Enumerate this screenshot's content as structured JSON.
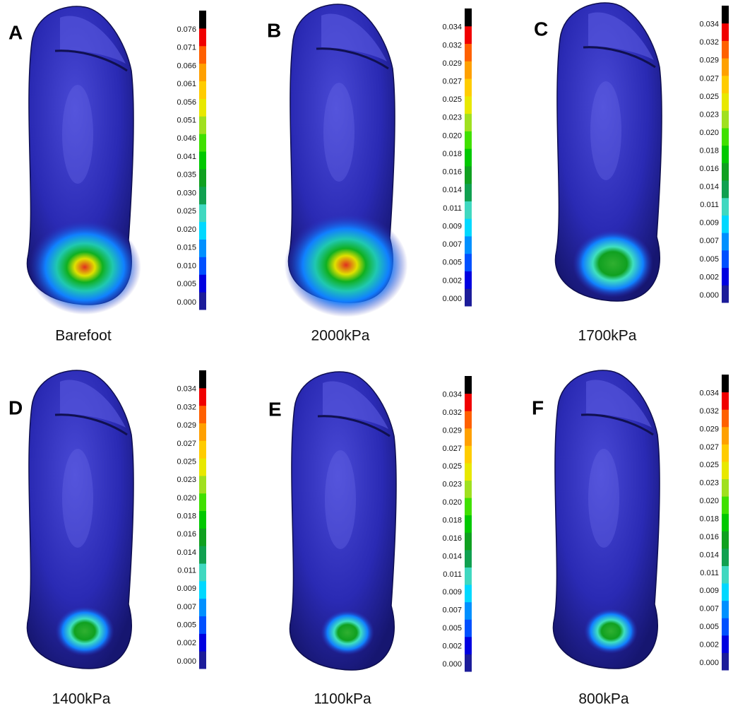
{
  "panels": [
    {
      "label": "A",
      "caption": "Barefoot",
      "ticks": [
        "0.076",
        "0.071",
        "0.066",
        "0.061",
        "0.056",
        "0.051",
        "0.046",
        "0.041",
        "0.035",
        "0.030",
        "0.025",
        "0.020",
        "0.015",
        "0.010",
        "0.005",
        "0.000"
      ]
    },
    {
      "label": "B",
      "caption": "2000kPa",
      "ticks": [
        "0.034",
        "0.032",
        "0.029",
        "0.027",
        "0.025",
        "0.023",
        "0.020",
        "0.018",
        "0.016",
        "0.014",
        "0.011",
        "0.009",
        "0.007",
        "0.005",
        "0.002",
        "0.000"
      ]
    },
    {
      "label": "C",
      "caption": "1700kPa",
      "ticks": [
        "0.034",
        "0.032",
        "0.029",
        "0.027",
        "0.025",
        "0.023",
        "0.020",
        "0.018",
        "0.016",
        "0.014",
        "0.011",
        "0.009",
        "0.007",
        "0.005",
        "0.002",
        "0.000"
      ]
    },
    {
      "label": "D",
      "caption": "1400kPa",
      "ticks": [
        "0.034",
        "0.032",
        "0.029",
        "0.027",
        "0.025",
        "0.023",
        "0.020",
        "0.018",
        "0.016",
        "0.014",
        "0.011",
        "0.009",
        "0.007",
        "0.005",
        "0.002",
        "0.000"
      ]
    },
    {
      "label": "E",
      "caption": "1100kPa",
      "ticks": [
        "0.034",
        "0.032",
        "0.029",
        "0.027",
        "0.025",
        "0.023",
        "0.020",
        "0.018",
        "0.016",
        "0.014",
        "0.011",
        "0.009",
        "0.007",
        "0.005",
        "0.002",
        "0.000"
      ]
    },
    {
      "label": "F",
      "caption": "800kPa",
      "ticks": [
        "0.034",
        "0.032",
        "0.029",
        "0.027",
        "0.025",
        "0.023",
        "0.020",
        "0.018",
        "0.016",
        "0.014",
        "0.011",
        "0.009",
        "0.007",
        "0.005",
        "0.002",
        "0.000"
      ]
    }
  ]
}
